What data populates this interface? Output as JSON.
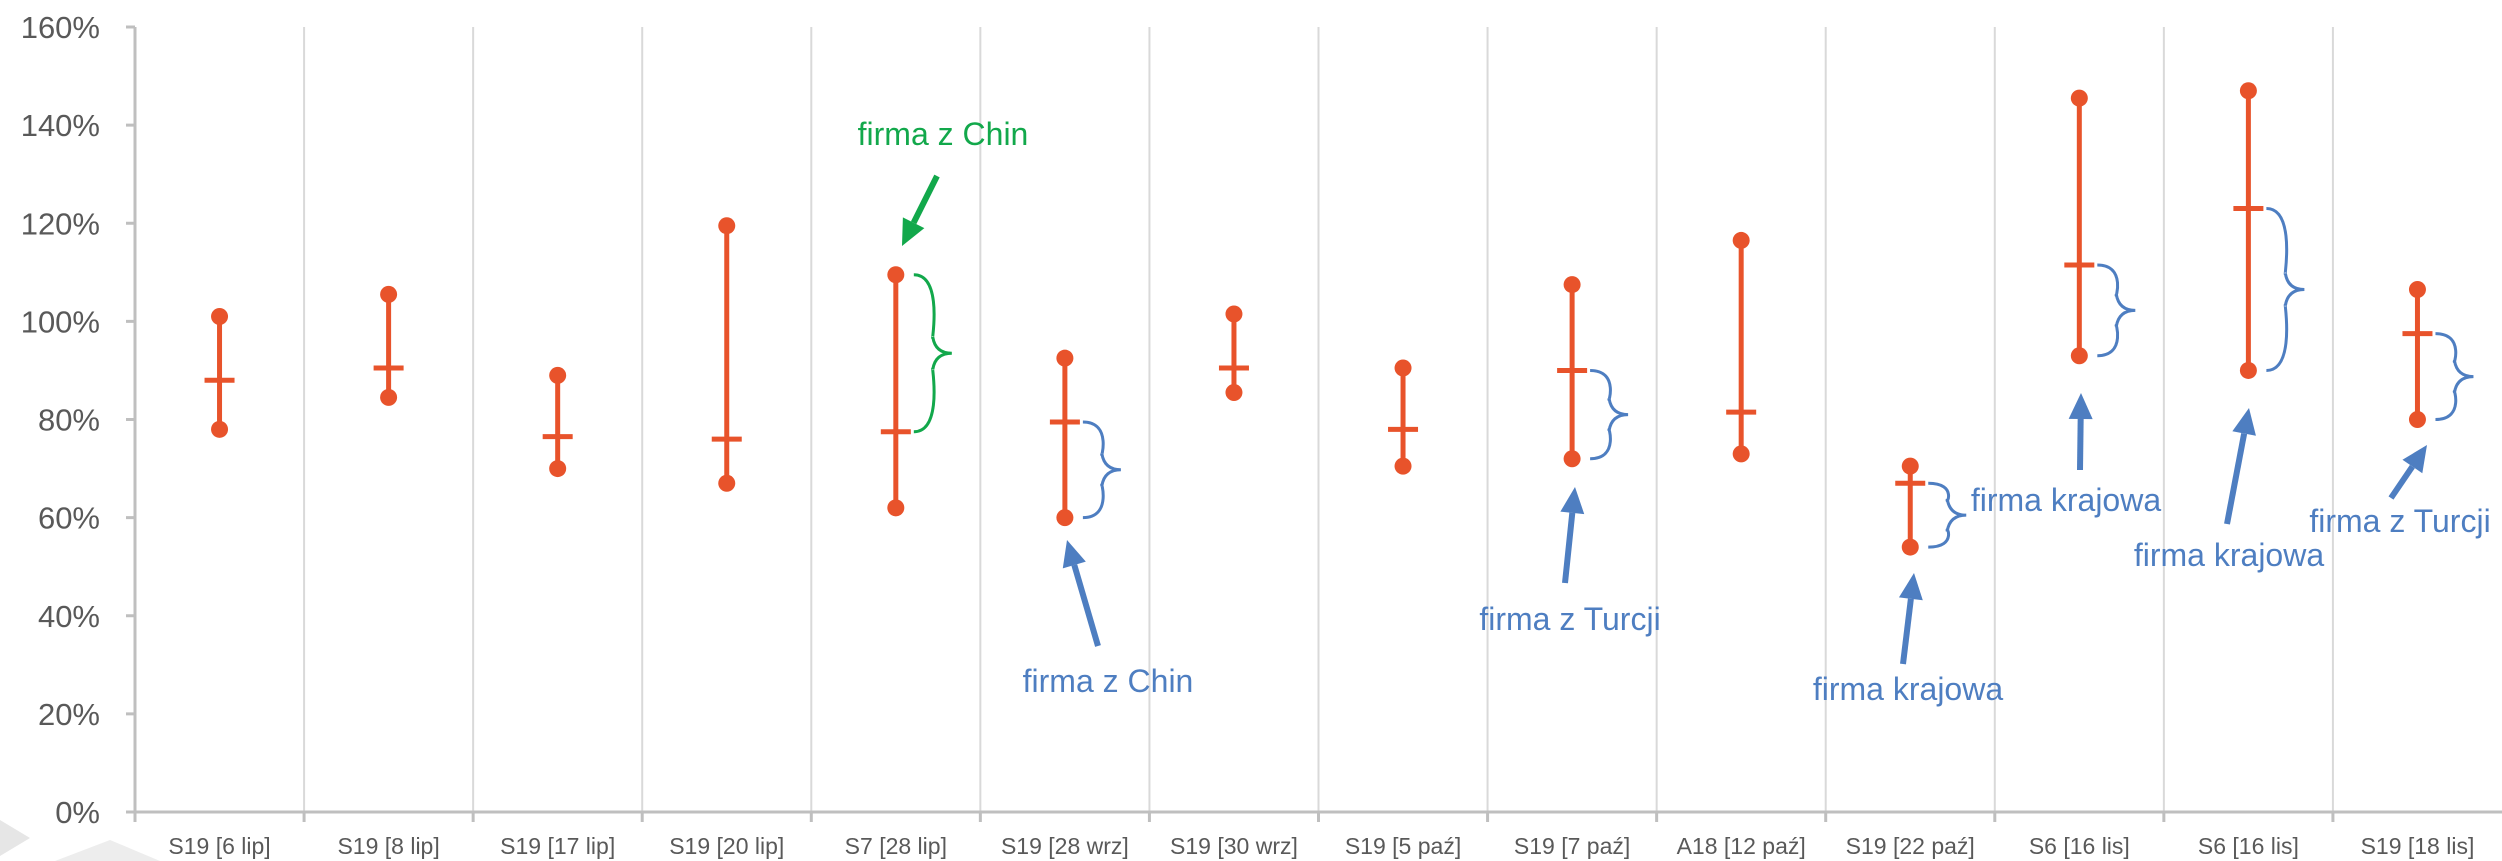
{
  "chart_data": {
    "type": "range",
    "title": "",
    "xlabel": "",
    "ylabel": "",
    "ylim": [
      0,
      1.6
    ],
    "y_ticks": [
      0,
      0.2,
      0.4,
      0.6,
      0.8,
      1.0,
      1.2,
      1.4,
      1.6
    ],
    "y_tick_labels": [
      "0%",
      "20%",
      "40%",
      "60%",
      "80%",
      "100%",
      "120%",
      "140%",
      "160%"
    ],
    "grid": "vertical",
    "categories": [
      "S19 [6 lip]",
      "S19 [8 lip]",
      "S19 [17 lip]",
      "S19 [20 lip]",
      "S7 [28 lip]",
      "S19 [28 wrz]",
      "S19 [30 wrz]",
      "S19 [5 paź]",
      "S19 [7 paź]",
      "A18 [12 paź]",
      "S19 [22 paź]",
      "S6 [16 lis]",
      "S6 [16 lis]",
      "S19 [18 lis]"
    ],
    "series": [
      {
        "values": [
          1.01,
          1.055,
          0.89,
          1.195,
          1.095,
          0.925,
          1.015,
          0.905,
          1.075,
          1.165,
          0.705,
          1.455,
          1.47,
          1.065
        ]
      },
      {
        "values": [
          0.78,
          0.845,
          0.7,
          0.67,
          0.62,
          0.6,
          0.855,
          0.705,
          0.72,
          0.73,
          0.54,
          0.93,
          0.9,
          0.8
        ]
      },
      {
        "values": [
          0.88,
          0.905,
          0.765,
          0.76,
          0.775,
          0.795,
          0.905,
          0.78,
          0.9,
          0.815,
          0.67,
          1.115,
          1.23,
          0.975
        ]
      }
    ],
    "colors": {
      "series": "#E8532B",
      "green_annotation": "#12A84B",
      "blue_annotation": "#4E7EC1",
      "axis": "#BFBFBF",
      "grid": "#D9D9D9",
      "tick_label": "#595959"
    },
    "annotations": [
      {
        "text": "firma z Chin",
        "color": "green",
        "category_index": 4,
        "bracket": "upper",
        "points_to": "high"
      },
      {
        "text": "firma z Chin",
        "color": "blue",
        "category_index": 5,
        "bracket": "lower",
        "points_to": "low"
      },
      {
        "text": "firma z Turcji",
        "color": "blue",
        "category_index": 8,
        "bracket": "lower",
        "points_to": "low"
      },
      {
        "text": "firma krajowa",
        "color": "blue",
        "category_index": 10,
        "bracket": "lower",
        "points_to": "low"
      },
      {
        "text": "firma krajowa",
        "color": "blue",
        "category_index": 11,
        "bracket": "lower",
        "points_to": "low"
      },
      {
        "text": "firma krajowa",
        "color": "blue",
        "category_index": 12,
        "bracket": "lower",
        "points_to": "low"
      },
      {
        "text": "firma z Turcji",
        "color": "blue",
        "category_index": 13,
        "bracket": "lower",
        "points_to": "low"
      }
    ]
  }
}
